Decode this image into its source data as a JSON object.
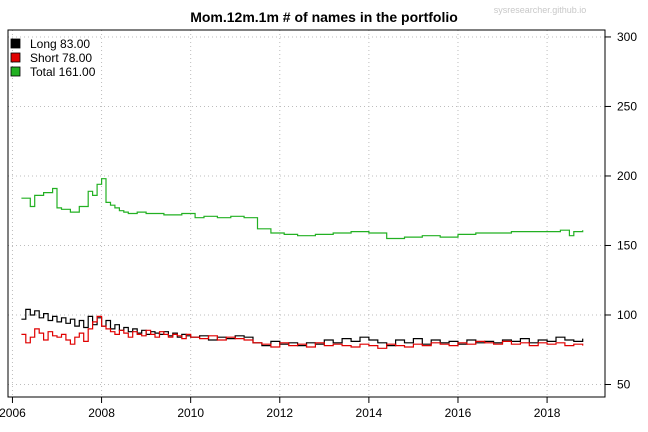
{
  "chart_data": {
    "type": "line",
    "title": "Mom.12m.1m # of names in the portfolio",
    "watermark": "sysresearcher.github.io",
    "x_range": [
      2005.9,
      2019.3
    ],
    "y_range": [
      41,
      305
    ],
    "x_ticks": [
      2006,
      2008,
      2010,
      2012,
      2014,
      2016,
      2018
    ],
    "y_ticks": [
      50,
      100,
      150,
      200,
      250,
      300
    ],
    "y_axis_side": "right",
    "grid": true,
    "legend_position": "top-left",
    "legend": [
      {
        "label": "Long  83.00",
        "color": "#000000"
      },
      {
        "label": "Short  78.00",
        "color": "#e00000"
      },
      {
        "label": "Total 161.00",
        "color": "#22b022"
      }
    ],
    "series": [
      {
        "name": "Long",
        "color": "#000000",
        "step": true,
        "x": [
          2006.2,
          2006.3,
          2006.4,
          2006.5,
          2006.6,
          2006.7,
          2006.8,
          2006.9,
          2007.0,
          2007.1,
          2007.2,
          2007.3,
          2007.4,
          2007.5,
          2007.6,
          2007.7,
          2007.8,
          2007.9,
          2008.0,
          2008.1,
          2008.2,
          2008.3,
          2008.4,
          2008.5,
          2008.6,
          2008.7,
          2008.8,
          2008.9,
          2009.0,
          2009.1,
          2009.2,
          2009.3,
          2009.4,
          2009.5,
          2009.6,
          2009.7,
          2009.8,
          2009.9,
          2010.0,
          2010.2,
          2010.4,
          2010.6,
          2010.8,
          2011.0,
          2011.2,
          2011.4,
          2011.6,
          2011.8,
          2012.0,
          2012.2,
          2012.4,
          2012.6,
          2012.8,
          2013.0,
          2013.2,
          2013.4,
          2013.6,
          2013.8,
          2014.0,
          2014.2,
          2014.4,
          2014.6,
          2014.8,
          2015.0,
          2015.2,
          2015.4,
          2015.6,
          2015.8,
          2016.0,
          2016.2,
          2016.4,
          2016.6,
          2016.8,
          2017.0,
          2017.2,
          2017.4,
          2017.6,
          2017.8,
          2018.0,
          2018.2,
          2018.4,
          2018.6,
          2018.8
        ],
        "values": [
          97,
          104,
          100,
          103,
          98,
          101,
          96,
          99,
          95,
          98,
          94,
          97,
          92,
          96,
          91,
          99,
          93,
          98,
          92,
          96,
          90,
          93,
          89,
          91,
          88,
          90,
          87,
          89,
          86,
          88,
          87,
          86,
          88,
          85,
          87,
          84,
          86,
          85,
          84,
          85,
          82,
          84,
          83,
          85,
          84,
          80,
          78,
          81,
          79,
          80,
          78,
          80,
          79,
          82,
          80,
          83,
          81,
          84,
          82,
          80,
          78,
          82,
          80,
          83,
          79,
          82,
          80,
          81,
          79,
          82,
          80,
          81,
          80,
          82,
          81,
          83,
          80,
          82,
          81,
          84,
          82,
          81,
          83
        ]
      },
      {
        "name": "Short",
        "color": "#e00000",
        "step": true,
        "x": [
          2006.2,
          2006.3,
          2006.4,
          2006.5,
          2006.6,
          2006.7,
          2006.8,
          2006.9,
          2007.0,
          2007.1,
          2007.2,
          2007.3,
          2007.4,
          2007.5,
          2007.6,
          2007.7,
          2007.8,
          2007.9,
          2008.0,
          2008.1,
          2008.2,
          2008.3,
          2008.4,
          2008.5,
          2008.6,
          2008.7,
          2008.8,
          2008.9,
          2009.0,
          2009.1,
          2009.2,
          2009.3,
          2009.4,
          2009.5,
          2009.6,
          2009.7,
          2009.8,
          2009.9,
          2010.0,
          2010.2,
          2010.4,
          2010.6,
          2010.8,
          2011.0,
          2011.2,
          2011.4,
          2011.6,
          2011.8,
          2012.0,
          2012.2,
          2012.4,
          2012.6,
          2012.8,
          2013.0,
          2013.2,
          2013.4,
          2013.6,
          2013.8,
          2014.0,
          2014.2,
          2014.4,
          2014.6,
          2014.8,
          2015.0,
          2015.2,
          2015.4,
          2015.6,
          2015.8,
          2016.0,
          2016.2,
          2016.4,
          2016.6,
          2016.8,
          2017.0,
          2017.2,
          2017.4,
          2017.6,
          2017.8,
          2018.0,
          2018.2,
          2018.4,
          2018.6,
          2018.8
        ],
        "values": [
          86,
          80,
          84,
          90,
          87,
          82,
          88,
          85,
          84,
          86,
          82,
          79,
          84,
          87,
          81,
          90,
          95,
          99,
          92,
          90,
          88,
          86,
          89,
          87,
          84,
          88,
          86,
          85,
          89,
          86,
          84,
          88,
          86,
          84,
          86,
          85,
          83,
          86,
          84,
          83,
          85,
          82,
          84,
          83,
          82,
          80,
          79,
          77,
          80,
          78,
          79,
          77,
          80,
          78,
          79,
          78,
          77,
          79,
          78,
          76,
          79,
          78,
          77,
          79,
          78,
          80,
          79,
          78,
          80,
          79,
          81,
          80,
          79,
          81,
          79,
          80,
          78,
          80,
          79,
          80,
          78,
          79,
          78
        ]
      },
      {
        "name": "Total",
        "color": "#22b022",
        "step": true,
        "x": [
          2006.2,
          2006.4,
          2006.5,
          2006.7,
          2006.9,
          2007.0,
          2007.1,
          2007.3,
          2007.5,
          2007.7,
          2007.8,
          2007.9,
          2008.0,
          2008.1,
          2008.2,
          2008.3,
          2008.4,
          2008.5,
          2008.6,
          2008.8,
          2009.0,
          2009.4,
          2009.8,
          2010.1,
          2010.3,
          2010.6,
          2010.9,
          2011.2,
          2011.5,
          2011.8,
          2012.1,
          2012.4,
          2012.8,
          2013.2,
          2013.6,
          2014.0,
          2014.4,
          2014.8,
          2015.2,
          2015.6,
          2016.0,
          2016.4,
          2016.8,
          2017.2,
          2017.6,
          2018.0,
          2018.3,
          2018.5,
          2018.6,
          2018.8
        ],
        "values": [
          184,
          178,
          186,
          188,
          191,
          177,
          176,
          174,
          178,
          189,
          186,
          194,
          198,
          181,
          179,
          177,
          175,
          174,
          173,
          174,
          173,
          172,
          173,
          170,
          171,
          170,
          171,
          170,
          162,
          159,
          158,
          157,
          158,
          159,
          160,
          159,
          155,
          156,
          157,
          156,
          158,
          159,
          159,
          160,
          160,
          160,
          161,
          157,
          160,
          161
        ]
      }
    ]
  }
}
